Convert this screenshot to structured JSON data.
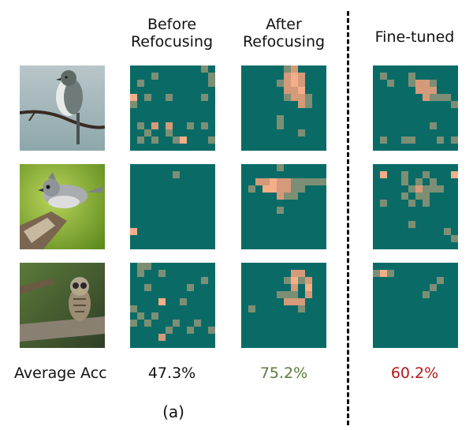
{
  "headers": {
    "before": [
      "Before",
      "Refocusing"
    ],
    "after": [
      "After",
      "Refocusing"
    ],
    "finetuned": "Fine-tuned"
  },
  "row_label": "Average Acc",
  "accuracy": {
    "before": "47.3%",
    "after": "75.2%",
    "finetuned": "60.2%"
  },
  "caption": "(a)",
  "colors": {
    "heatmap_bg": "#0a6b66",
    "after_value": "#5a7a3a",
    "finetuned_value": "#b01818",
    "cell_strong": "#f4ae88",
    "cell_medium": "#d49a7a",
    "cell_weak": "#7c8f75"
  },
  "photos": [
    "bird-photo-flycatcher",
    "bird-photo-titmouse",
    "bird-photo-owl"
  ],
  "heatmaps": {
    "before": [
      [
        [
          3,
          1,
          "w"
        ],
        [
          10,
          0,
          "w"
        ],
        [
          1,
          2,
          "w"
        ],
        [
          11,
          2,
          "w"
        ],
        [
          0,
          4,
          "s"
        ],
        [
          2,
          4,
          "w"
        ],
        [
          5,
          4,
          "w"
        ],
        [
          10,
          4,
          "w"
        ],
        [
          0,
          5,
          "w"
        ],
        [
          1,
          8,
          "w"
        ],
        [
          3,
          8,
          "m"
        ],
        [
          5,
          8,
          "m"
        ],
        [
          8,
          8,
          "w"
        ],
        [
          2,
          9,
          "w"
        ],
        [
          5,
          9,
          "w"
        ],
        [
          10,
          8,
          "w"
        ],
        [
          1,
          10,
          "w"
        ],
        [
          3,
          10,
          "w"
        ],
        [
          7,
          10,
          "s"
        ],
        [
          11,
          10,
          "w"
        ],
        [
          11,
          1,
          "w"
        ],
        [
          6,
          10,
          "w"
        ]
      ],
      [
        [
          6,
          1,
          "w"
        ],
        [
          0,
          9,
          "s"
        ]
      ],
      [
        [
          1,
          0,
          "w"
        ],
        [
          2,
          0,
          "w"
        ],
        [
          1,
          1,
          "w"
        ],
        [
          4,
          1,
          "w"
        ],
        [
          10,
          2,
          "w"
        ],
        [
          2,
          3,
          "w"
        ],
        [
          8,
          3,
          "w"
        ],
        [
          4,
          5,
          "s"
        ],
        [
          7,
          5,
          "w"
        ],
        [
          1,
          7,
          "w"
        ],
        [
          3,
          7,
          "w"
        ],
        [
          0,
          8,
          "w"
        ],
        [
          2,
          8,
          "w"
        ],
        [
          6,
          8,
          "w"
        ],
        [
          9,
          8,
          "w"
        ],
        [
          11,
          9,
          "w"
        ],
        [
          5,
          9,
          "w"
        ],
        [
          8,
          9,
          "w"
        ],
        [
          4,
          10,
          "m"
        ],
        [
          0,
          6,
          "w"
        ]
      ]
    ],
    "after": [
      [
        [
          6,
          0,
          "w"
        ],
        [
          7,
          0,
          "m"
        ],
        [
          6,
          1,
          "m"
        ],
        [
          7,
          1,
          "s"
        ],
        [
          8,
          1,
          "m"
        ],
        [
          5,
          2,
          "w"
        ],
        [
          6,
          2,
          "m"
        ],
        [
          7,
          2,
          "s"
        ],
        [
          8,
          2,
          "m"
        ],
        [
          6,
          3,
          "m"
        ],
        [
          7,
          3,
          "m"
        ],
        [
          8,
          3,
          "s"
        ],
        [
          6,
          4,
          "w"
        ],
        [
          7,
          4,
          "m"
        ],
        [
          8,
          4,
          "m"
        ],
        [
          9,
          4,
          "w"
        ],
        [
          8,
          5,
          "m"
        ],
        [
          9,
          5,
          "w"
        ],
        [
          5,
          7,
          "w"
        ],
        [
          5,
          8,
          "w"
        ],
        [
          8,
          9,
          "w"
        ]
      ],
      [
        [
          2,
          2,
          "m"
        ],
        [
          3,
          2,
          "m"
        ],
        [
          4,
          2,
          "s"
        ],
        [
          5,
          2,
          "m"
        ],
        [
          6,
          2,
          "m"
        ],
        [
          7,
          2,
          "w"
        ],
        [
          8,
          2,
          "w"
        ],
        [
          9,
          2,
          "w"
        ],
        [
          10,
          2,
          "w"
        ],
        [
          11,
          2,
          "w"
        ],
        [
          3,
          3,
          "s"
        ],
        [
          4,
          3,
          "s"
        ],
        [
          5,
          3,
          "m"
        ],
        [
          6,
          3,
          "m"
        ],
        [
          7,
          3,
          "w"
        ],
        [
          8,
          3,
          "w"
        ],
        [
          1,
          3,
          "w"
        ],
        [
          5,
          4,
          "m"
        ],
        [
          6,
          4,
          "w"
        ],
        [
          7,
          4,
          "w"
        ],
        [
          5,
          6,
          "w"
        ],
        [
          5,
          0,
          "w"
        ]
      ],
      [
        [
          7,
          1,
          "m"
        ],
        [
          8,
          1,
          "m"
        ],
        [
          6,
          2,
          "w"
        ],
        [
          7,
          2,
          "s"
        ],
        [
          8,
          2,
          "w"
        ],
        [
          9,
          2,
          "m"
        ],
        [
          7,
          3,
          "m"
        ],
        [
          9,
          3,
          "s"
        ],
        [
          6,
          4,
          "w"
        ],
        [
          7,
          4,
          "w"
        ],
        [
          9,
          4,
          "m"
        ],
        [
          6,
          5,
          "m"
        ],
        [
          7,
          5,
          "m"
        ],
        [
          8,
          5,
          "m"
        ],
        [
          5,
          4,
          "w"
        ],
        [
          1,
          6,
          "w"
        ],
        [
          8,
          6,
          "w"
        ]
      ]
    ],
    "finetuned": [
      [
        [
          1,
          1,
          "w"
        ],
        [
          2,
          2,
          "w"
        ],
        [
          5,
          1,
          "w"
        ],
        [
          5,
          2,
          "w"
        ],
        [
          6,
          2,
          "m"
        ],
        [
          7,
          2,
          "m"
        ],
        [
          8,
          2,
          "w"
        ],
        [
          6,
          3,
          "m"
        ],
        [
          7,
          3,
          "m"
        ],
        [
          8,
          3,
          "m"
        ],
        [
          7,
          4,
          "m"
        ],
        [
          8,
          4,
          "w"
        ],
        [
          9,
          4,
          "w"
        ],
        [
          10,
          4,
          "w"
        ],
        [
          11,
          5,
          "w"
        ],
        [
          8,
          8,
          "w"
        ],
        [
          1,
          10,
          "w"
        ],
        [
          4,
          10,
          "w"
        ],
        [
          5,
          10,
          "w"
        ],
        [
          9,
          10,
          "w"
        ],
        [
          11,
          10,
          "w"
        ]
      ],
      [
        [
          1,
          1,
          "s"
        ],
        [
          4,
          1,
          "w"
        ],
        [
          7,
          1,
          "w"
        ],
        [
          11,
          1,
          "s"
        ],
        [
          4,
          2,
          "w"
        ],
        [
          6,
          2,
          "w"
        ],
        [
          8,
          2,
          "w"
        ],
        [
          5,
          3,
          "w"
        ],
        [
          6,
          3,
          "m"
        ],
        [
          7,
          3,
          "w"
        ],
        [
          8,
          3,
          "w"
        ],
        [
          9,
          3,
          "w"
        ],
        [
          4,
          4,
          "w"
        ],
        [
          6,
          4,
          "w"
        ],
        [
          7,
          4,
          "w"
        ],
        [
          1,
          5,
          "w"
        ],
        [
          5,
          5,
          "w"
        ],
        [
          7,
          5,
          "w"
        ],
        [
          5,
          8,
          "w"
        ],
        [
          10,
          9,
          "w"
        ],
        [
          11,
          10,
          "w"
        ]
      ],
      [
        [
          1,
          1,
          "s"
        ],
        [
          2,
          1,
          "w"
        ],
        [
          9,
          2,
          "w"
        ],
        [
          8,
          3,
          "w"
        ],
        [
          7,
          4,
          "w"
        ],
        [
          0,
          1,
          "w"
        ]
      ]
    ]
  }
}
